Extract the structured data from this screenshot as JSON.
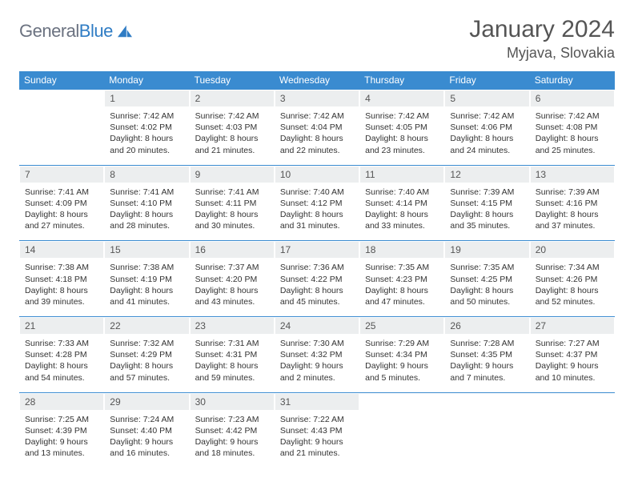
{
  "colors": {
    "header_bg": "#3a8bd0",
    "header_text": "#ffffff",
    "daynum_bg": "#eceeef",
    "daynum_text": "#555555",
    "row_border": "#3a8bd0",
    "body_text": "#333333",
    "title_text": "#555555",
    "logo_gray": "#6b7280",
    "logo_blue": "#2f7cc4",
    "background": "#ffffff"
  },
  "typography": {
    "title_fontsize": 30,
    "location_fontsize": 18,
    "dow_fontsize": 12,
    "daynum_fontsize": 12,
    "content_fontsize": 10.5
  },
  "logo": {
    "part1": "General",
    "part2": "Blue"
  },
  "title": "January 2024",
  "location": "Myjava, Slovakia",
  "dow": [
    "Sunday",
    "Monday",
    "Tuesday",
    "Wednesday",
    "Thursday",
    "Friday",
    "Saturday"
  ],
  "weeks": [
    [
      {
        "n": "",
        "lines": []
      },
      {
        "n": "1",
        "lines": [
          "Sunrise: 7:42 AM",
          "Sunset: 4:02 PM",
          "Daylight: 8 hours",
          "and 20 minutes."
        ]
      },
      {
        "n": "2",
        "lines": [
          "Sunrise: 7:42 AM",
          "Sunset: 4:03 PM",
          "Daylight: 8 hours",
          "and 21 minutes."
        ]
      },
      {
        "n": "3",
        "lines": [
          "Sunrise: 7:42 AM",
          "Sunset: 4:04 PM",
          "Daylight: 8 hours",
          "and 22 minutes."
        ]
      },
      {
        "n": "4",
        "lines": [
          "Sunrise: 7:42 AM",
          "Sunset: 4:05 PM",
          "Daylight: 8 hours",
          "and 23 minutes."
        ]
      },
      {
        "n": "5",
        "lines": [
          "Sunrise: 7:42 AM",
          "Sunset: 4:06 PM",
          "Daylight: 8 hours",
          "and 24 minutes."
        ]
      },
      {
        "n": "6",
        "lines": [
          "Sunrise: 7:42 AM",
          "Sunset: 4:08 PM",
          "Daylight: 8 hours",
          "and 25 minutes."
        ]
      }
    ],
    [
      {
        "n": "7",
        "lines": [
          "Sunrise: 7:41 AM",
          "Sunset: 4:09 PM",
          "Daylight: 8 hours",
          "and 27 minutes."
        ]
      },
      {
        "n": "8",
        "lines": [
          "Sunrise: 7:41 AM",
          "Sunset: 4:10 PM",
          "Daylight: 8 hours",
          "and 28 minutes."
        ]
      },
      {
        "n": "9",
        "lines": [
          "Sunrise: 7:41 AM",
          "Sunset: 4:11 PM",
          "Daylight: 8 hours",
          "and 30 minutes."
        ]
      },
      {
        "n": "10",
        "lines": [
          "Sunrise: 7:40 AM",
          "Sunset: 4:12 PM",
          "Daylight: 8 hours",
          "and 31 minutes."
        ]
      },
      {
        "n": "11",
        "lines": [
          "Sunrise: 7:40 AM",
          "Sunset: 4:14 PM",
          "Daylight: 8 hours",
          "and 33 minutes."
        ]
      },
      {
        "n": "12",
        "lines": [
          "Sunrise: 7:39 AM",
          "Sunset: 4:15 PM",
          "Daylight: 8 hours",
          "and 35 minutes."
        ]
      },
      {
        "n": "13",
        "lines": [
          "Sunrise: 7:39 AM",
          "Sunset: 4:16 PM",
          "Daylight: 8 hours",
          "and 37 minutes."
        ]
      }
    ],
    [
      {
        "n": "14",
        "lines": [
          "Sunrise: 7:38 AM",
          "Sunset: 4:18 PM",
          "Daylight: 8 hours",
          "and 39 minutes."
        ]
      },
      {
        "n": "15",
        "lines": [
          "Sunrise: 7:38 AM",
          "Sunset: 4:19 PM",
          "Daylight: 8 hours",
          "and 41 minutes."
        ]
      },
      {
        "n": "16",
        "lines": [
          "Sunrise: 7:37 AM",
          "Sunset: 4:20 PM",
          "Daylight: 8 hours",
          "and 43 minutes."
        ]
      },
      {
        "n": "17",
        "lines": [
          "Sunrise: 7:36 AM",
          "Sunset: 4:22 PM",
          "Daylight: 8 hours",
          "and 45 minutes."
        ]
      },
      {
        "n": "18",
        "lines": [
          "Sunrise: 7:35 AM",
          "Sunset: 4:23 PM",
          "Daylight: 8 hours",
          "and 47 minutes."
        ]
      },
      {
        "n": "19",
        "lines": [
          "Sunrise: 7:35 AM",
          "Sunset: 4:25 PM",
          "Daylight: 8 hours",
          "and 50 minutes."
        ]
      },
      {
        "n": "20",
        "lines": [
          "Sunrise: 7:34 AM",
          "Sunset: 4:26 PM",
          "Daylight: 8 hours",
          "and 52 minutes."
        ]
      }
    ],
    [
      {
        "n": "21",
        "lines": [
          "Sunrise: 7:33 AM",
          "Sunset: 4:28 PM",
          "Daylight: 8 hours",
          "and 54 minutes."
        ]
      },
      {
        "n": "22",
        "lines": [
          "Sunrise: 7:32 AM",
          "Sunset: 4:29 PM",
          "Daylight: 8 hours",
          "and 57 minutes."
        ]
      },
      {
        "n": "23",
        "lines": [
          "Sunrise: 7:31 AM",
          "Sunset: 4:31 PM",
          "Daylight: 8 hours",
          "and 59 minutes."
        ]
      },
      {
        "n": "24",
        "lines": [
          "Sunrise: 7:30 AM",
          "Sunset: 4:32 PM",
          "Daylight: 9 hours",
          "and 2 minutes."
        ]
      },
      {
        "n": "25",
        "lines": [
          "Sunrise: 7:29 AM",
          "Sunset: 4:34 PM",
          "Daylight: 9 hours",
          "and 5 minutes."
        ]
      },
      {
        "n": "26",
        "lines": [
          "Sunrise: 7:28 AM",
          "Sunset: 4:35 PM",
          "Daylight: 9 hours",
          "and 7 minutes."
        ]
      },
      {
        "n": "27",
        "lines": [
          "Sunrise: 7:27 AM",
          "Sunset: 4:37 PM",
          "Daylight: 9 hours",
          "and 10 minutes."
        ]
      }
    ],
    [
      {
        "n": "28",
        "lines": [
          "Sunrise: 7:25 AM",
          "Sunset: 4:39 PM",
          "Daylight: 9 hours",
          "and 13 minutes."
        ]
      },
      {
        "n": "29",
        "lines": [
          "Sunrise: 7:24 AM",
          "Sunset: 4:40 PM",
          "Daylight: 9 hours",
          "and 16 minutes."
        ]
      },
      {
        "n": "30",
        "lines": [
          "Sunrise: 7:23 AM",
          "Sunset: 4:42 PM",
          "Daylight: 9 hours",
          "and 18 minutes."
        ]
      },
      {
        "n": "31",
        "lines": [
          "Sunrise: 7:22 AM",
          "Sunset: 4:43 PM",
          "Daylight: 9 hours",
          "and 21 minutes."
        ]
      },
      {
        "n": "",
        "lines": []
      },
      {
        "n": "",
        "lines": []
      },
      {
        "n": "",
        "lines": []
      }
    ]
  ]
}
